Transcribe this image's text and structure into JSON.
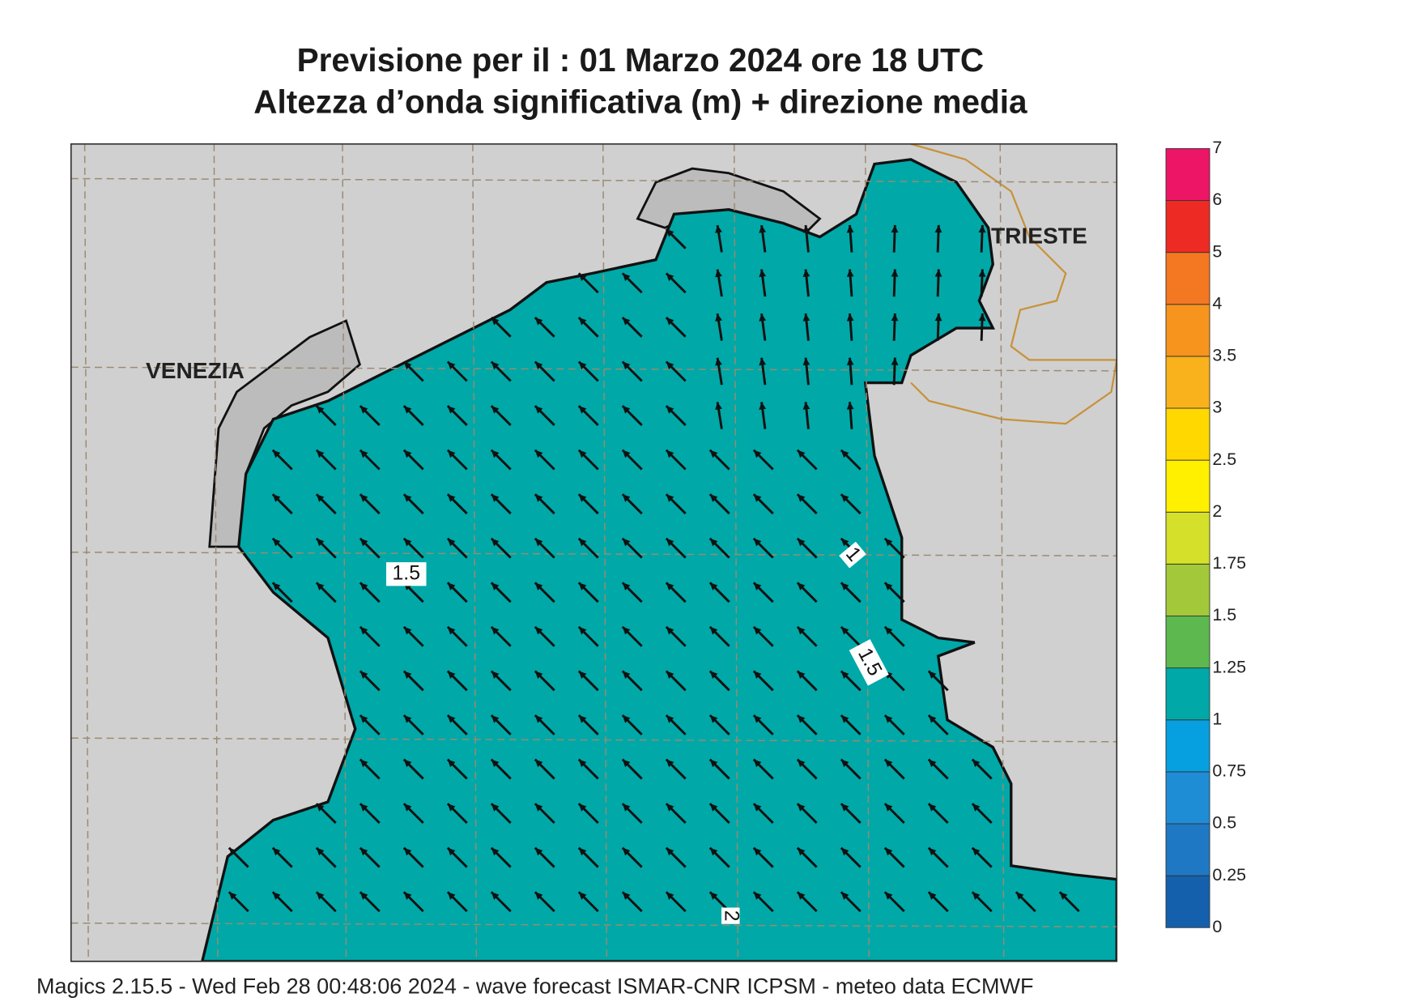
{
  "map": {
    "title": "Previsione per il  :  01   Marzo   2024   ore 18 UTC",
    "subtitle": "Altezza d’onda significativa (m) + direzione media",
    "places": [
      "VENEZIA",
      "TRIESTE"
    ],
    "contour_labels": [
      "1.5",
      "1.5",
      "1",
      "2"
    ],
    "footer": "Magics 2.15.5 - Wed Feb 28 00:48:06 2024 - wave forecast  ISMAR-CNR  ICPSM - meteo data   ECMWF",
    "colorbar": {
      "levels": [
        0,
        0.25,
        0.5,
        0.75,
        1,
        1.25,
        1.5,
        1.75,
        2,
        2.5,
        3,
        3.5,
        4,
        5,
        6,
        7
      ],
      "colors": [
        "#1560ad",
        "#1f78c4",
        "#1f8dd6",
        "#06a0e0",
        "#00a8a8",
        "#5cb84f",
        "#a3c93a",
        "#d4e02a",
        "#fff000",
        "#ffd800",
        "#f9b21b",
        "#f7941d",
        "#f47721",
        "#ee2a24",
        "#ed1566"
      ]
    }
  }
}
